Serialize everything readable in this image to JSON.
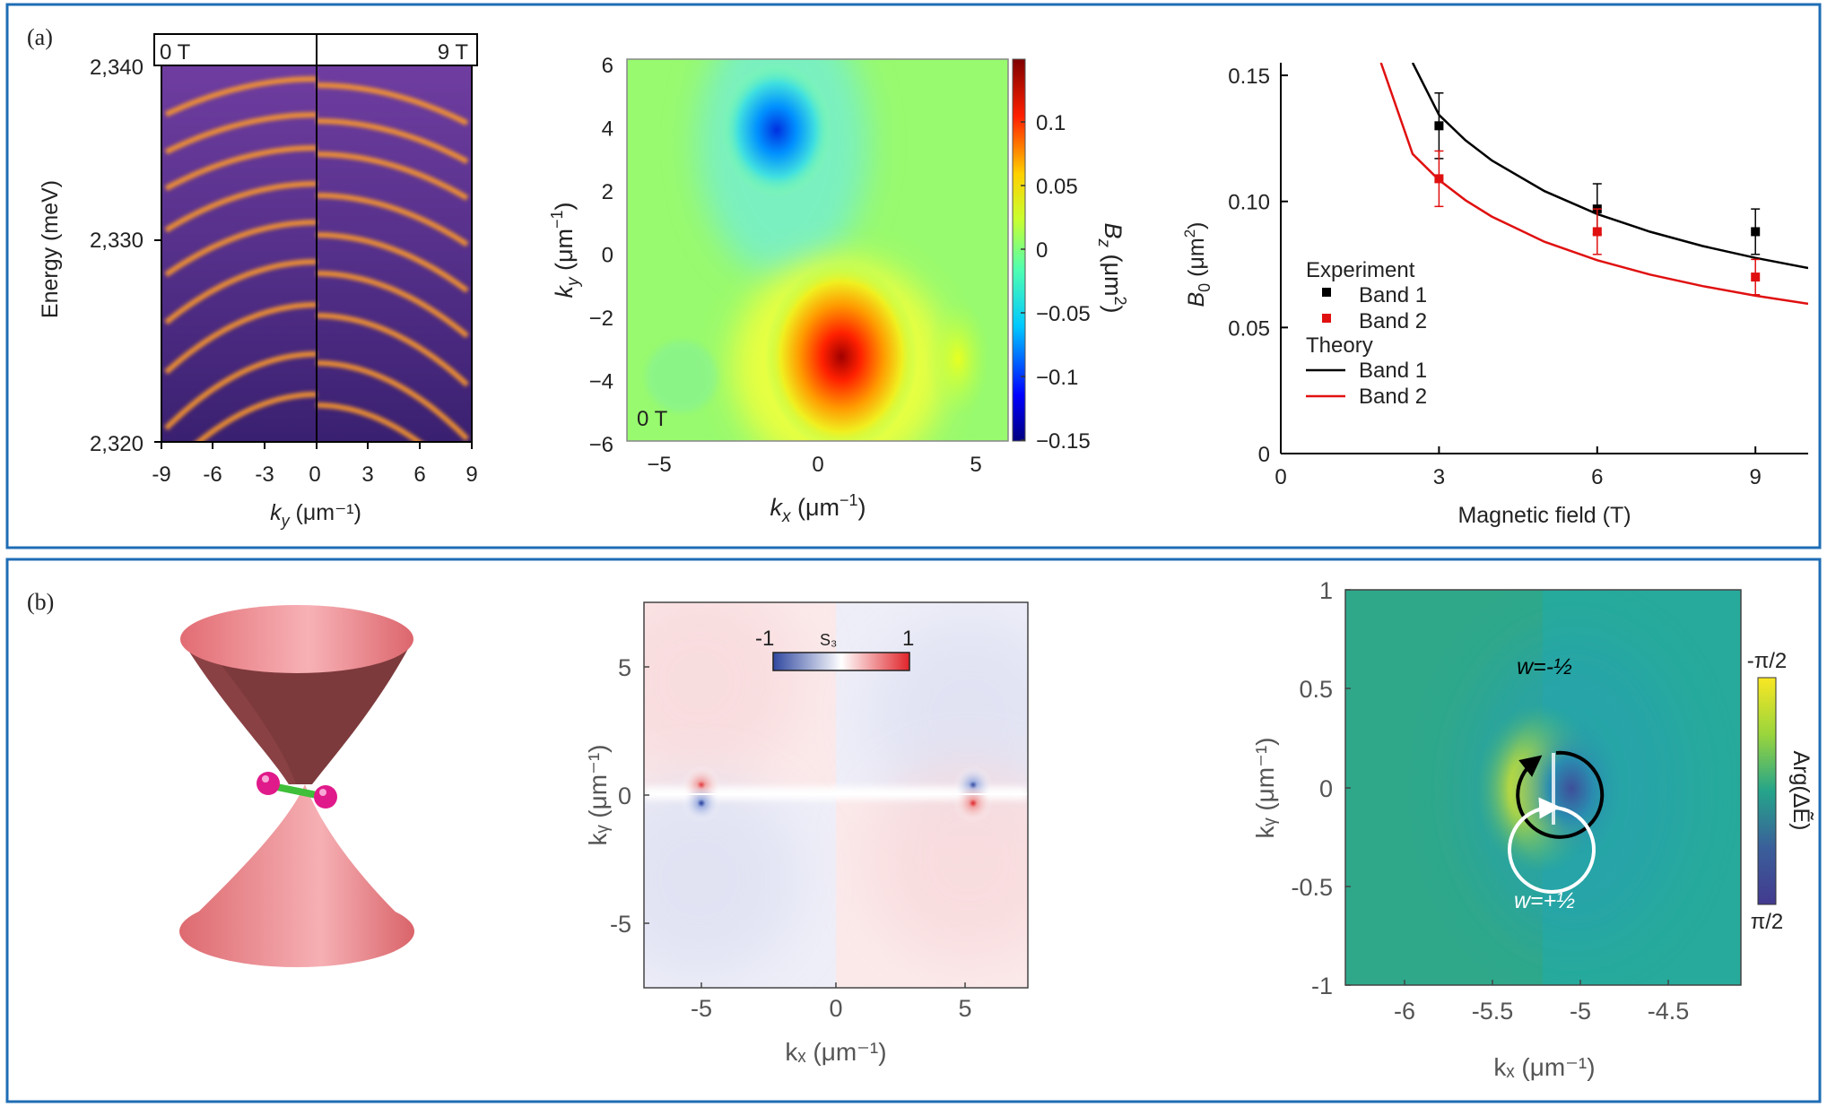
{
  "panels": {
    "a": {
      "tag": "(a)",
      "spectrum": {
        "left_label": "0 T",
        "right_label": "9 T",
        "ylabel": "Energy (meV)",
        "xlabel_sym": "k",
        "xlabel_sub": "y",
        "xlabel_unit": " (μm⁻¹)",
        "yticks": [
          "2,340",
          "2,330",
          "2,320"
        ],
        "xticks": [
          "-9",
          "-6",
          "-3",
          "0",
          "0",
          "3",
          "6",
          "9"
        ]
      },
      "bmap": {
        "corner_label": "0 T",
        "xlabel_sym": "k",
        "xlabel_sub": "x",
        "xlabel_unit": " (μm",
        "xlabel_exp": "−1",
        "xlabel_close": ")",
        "ylabel_sym": "k",
        "ylabel_sub": "y",
        "ylabel_unit": " (μm",
        "ylabel_exp": "−1",
        "ylabel_close": ")",
        "cb_label_sym": "B",
        "cb_label_sub": "z",
        "cb_label_unit": " (μm",
        "cb_label_exp": "2",
        "cb_label_close": ")",
        "xticks": [
          "−5",
          "0",
          "5"
        ],
        "yticks": [
          "6",
          "4",
          "2",
          "0",
          "−2",
          "−4",
          "−6"
        ],
        "cbticks": [
          "0.1",
          "0.05",
          "0",
          "−0.05",
          "−0.1",
          "−0.15"
        ]
      }
    },
    "b": {
      "tag": "(b)",
      "s3": {
        "cb_min": "-1",
        "cb_max": "1",
        "cb_title": "S₃",
        "xlabel": "kₓ (μm⁻¹)",
        "ylabel": "kᵧ (μm⁻¹)",
        "xticks": [
          "-5",
          "0",
          "5"
        ],
        "yticks": [
          "5",
          "0",
          "-5"
        ]
      },
      "arg": {
        "xlabel": "kₓ (μm⁻¹)",
        "ylabel": "kᵧ (μm⁻¹)",
        "xticks": [
          "-6",
          "-5.5",
          "-5",
          "-4.5"
        ],
        "yticks": [
          "1",
          "0.5",
          "0",
          "-0.5",
          "-1"
        ],
        "cb_top": "-π/2",
        "cb_bottom": "π/2",
        "cb_label": "Arg(ΔẼ)",
        "w_top": "w=-½",
        "w_bottom": "w=+½"
      }
    }
  },
  "chart_data": [
    {
      "type": "line",
      "xlabel": "Magnetic field (T)",
      "ylabel": "B₀ (μm²)",
      "xlim": [
        0,
        10
      ],
      "ylim": [
        0,
        0.155
      ],
      "xticks": [
        0,
        3,
        6,
        9
      ],
      "yticks": [
        0,
        0.05,
        0.1,
        0.15
      ],
      "xtick_labels": [
        "0",
        "3",
        "6",
        "9"
      ],
      "ytick_labels": [
        "0",
        "0.05",
        "0.10",
        "0.15"
      ],
      "legend": {
        "experiment_title": "Experiment",
        "theory_title": "Theory",
        "placement": "center-left"
      },
      "series": [
        {
          "name": "Band 1",
          "kind": "experiment",
          "color": "#000000",
          "x": [
            3,
            6,
            9
          ],
          "y": [
            0.13,
            0.097,
            0.088
          ],
          "err": [
            0.013,
            0.01,
            0.009
          ]
        },
        {
          "name": "Band 2",
          "kind": "experiment",
          "color": "#e01010",
          "x": [
            3,
            6,
            9
          ],
          "y": [
            0.109,
            0.088,
            0.07
          ],
          "err": [
            0.011,
            0.009,
            0.007
          ]
        },
        {
          "name": "Band 1",
          "kind": "theory",
          "color": "#000000",
          "x": [
            2.5,
            3,
            3.5,
            4,
            5,
            6,
            7,
            8,
            9,
            10
          ],
          "y": [
            0.155,
            0.1343,
            0.1243,
            0.1163,
            0.1041,
            0.095,
            0.088,
            0.0823,
            0.0776,
            0.0736
          ]
        },
        {
          "name": "Band 2",
          "kind": "theory",
          "color": "#e01010",
          "x": [
            1.9,
            2.5,
            3,
            3.5,
            4,
            5,
            6,
            7,
            8,
            9,
            10
          ],
          "y": [
            0.155,
            0.1188,
            0.1085,
            0.1005,
            0.094,
            0.084,
            0.0767,
            0.071,
            0.0664,
            0.0626,
            0.0594
          ]
        }
      ]
    }
  ],
  "colors": {
    "frame": "#1f6db5",
    "band_experiment_1": "#000000",
    "band_experiment_2": "#e01010"
  }
}
